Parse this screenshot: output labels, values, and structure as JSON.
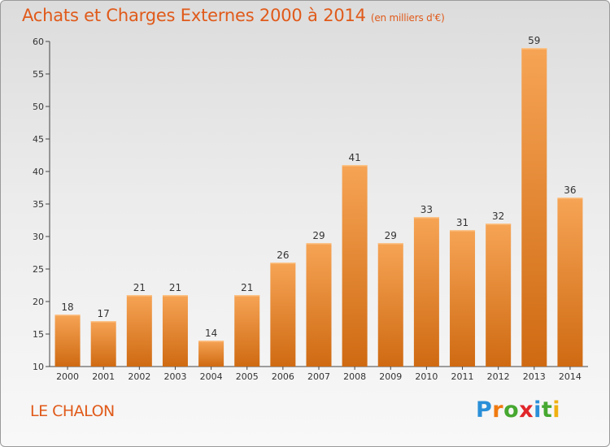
{
  "header": {
    "title": "Achats et Charges Externes 2000 à 2014",
    "unit": "(en milliers d'€)"
  },
  "footer": {
    "place": "LE CHALON",
    "logo_letters": [
      "P",
      "r",
      "o",
      "x",
      "i",
      "t",
      "i"
    ]
  },
  "colors": {
    "bar_top": "#f6a455",
    "bar_bottom": "#cf6a12",
    "title": "#e05a1a",
    "axis": "#444444"
  },
  "chart_data": {
    "type": "bar",
    "title": "Achats et Charges Externes 2000 à 2014",
    "subtitle": "(en milliers d'€)",
    "xlabel": "",
    "ylabel": "",
    "categories": [
      "2000",
      "2001",
      "2002",
      "2003",
      "2004",
      "2005",
      "2006",
      "2007",
      "2008",
      "2009",
      "2010",
      "2011",
      "2012",
      "2013",
      "2014"
    ],
    "values": [
      18,
      17,
      21,
      21,
      14,
      21,
      26,
      29,
      41,
      29,
      33,
      31,
      32,
      59,
      36
    ],
    "ylim": [
      10,
      60
    ],
    "yticks": [
      10,
      15,
      20,
      25,
      30,
      35,
      40,
      45,
      50,
      55,
      60
    ],
    "grid": false,
    "data_labels": true
  }
}
